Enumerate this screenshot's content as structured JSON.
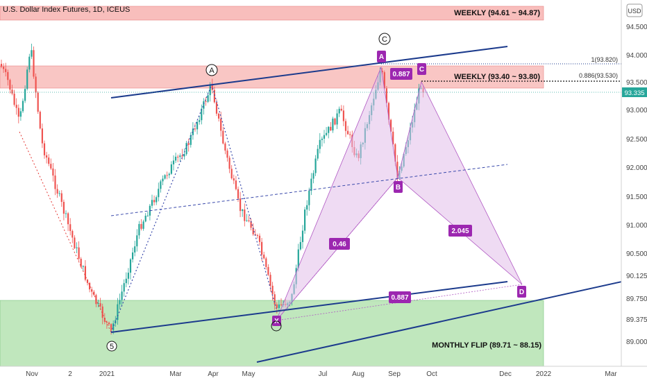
{
  "chart_data": {
    "type": "candlestick",
    "title": "U.S. Dollar Index Futures, 1D, ICEUS",
    "currency": "USD",
    "y_ticks": [
      "94.500",
      "94.000",
      "93.500",
      "93.000",
      "92.500",
      "92.000",
      "91.500",
      "91.000",
      "90.500",
      "90.125",
      "89.750",
      "89.375",
      "89.000"
    ],
    "x_ticks": [
      "Nov",
      "2",
      "2021",
      "Mar",
      "Apr",
      "May",
      "Jul",
      "Aug",
      "Sep",
      "Oct",
      "Dec",
      "2022",
      "Mar"
    ],
    "last_price": "93.335",
    "zones": [
      {
        "label": "WEEKLY (94.61 ~ 94.87)",
        "color": "#f7b3b0"
      },
      {
        "label": "WEEKLY (93.40 ~ 93.80)",
        "color": "#f7b3b0"
      },
      {
        "label": "MONTHLY FLIP (89.71 ~ 88.15)",
        "color": "#b9e4b6"
      }
    ],
    "fib_levels": [
      {
        "label": "1(93.820)"
      },
      {
        "label": "0.886(93.530)"
      }
    ],
    "harmonic_points": [
      "X",
      "A",
      "B",
      "C",
      "D"
    ],
    "harmonic_ratios": [
      "0.46",
      "0.887",
      "2.045",
      "0.887"
    ],
    "wave_labels": [
      "A",
      "C",
      "5"
    ],
    "colors": {
      "bull": "#26a69a",
      "bear": "#ef5350",
      "trend": "#1b3a8c",
      "pattern": "#a24fb5",
      "pattern_fill": "#e7c9ef"
    }
  }
}
